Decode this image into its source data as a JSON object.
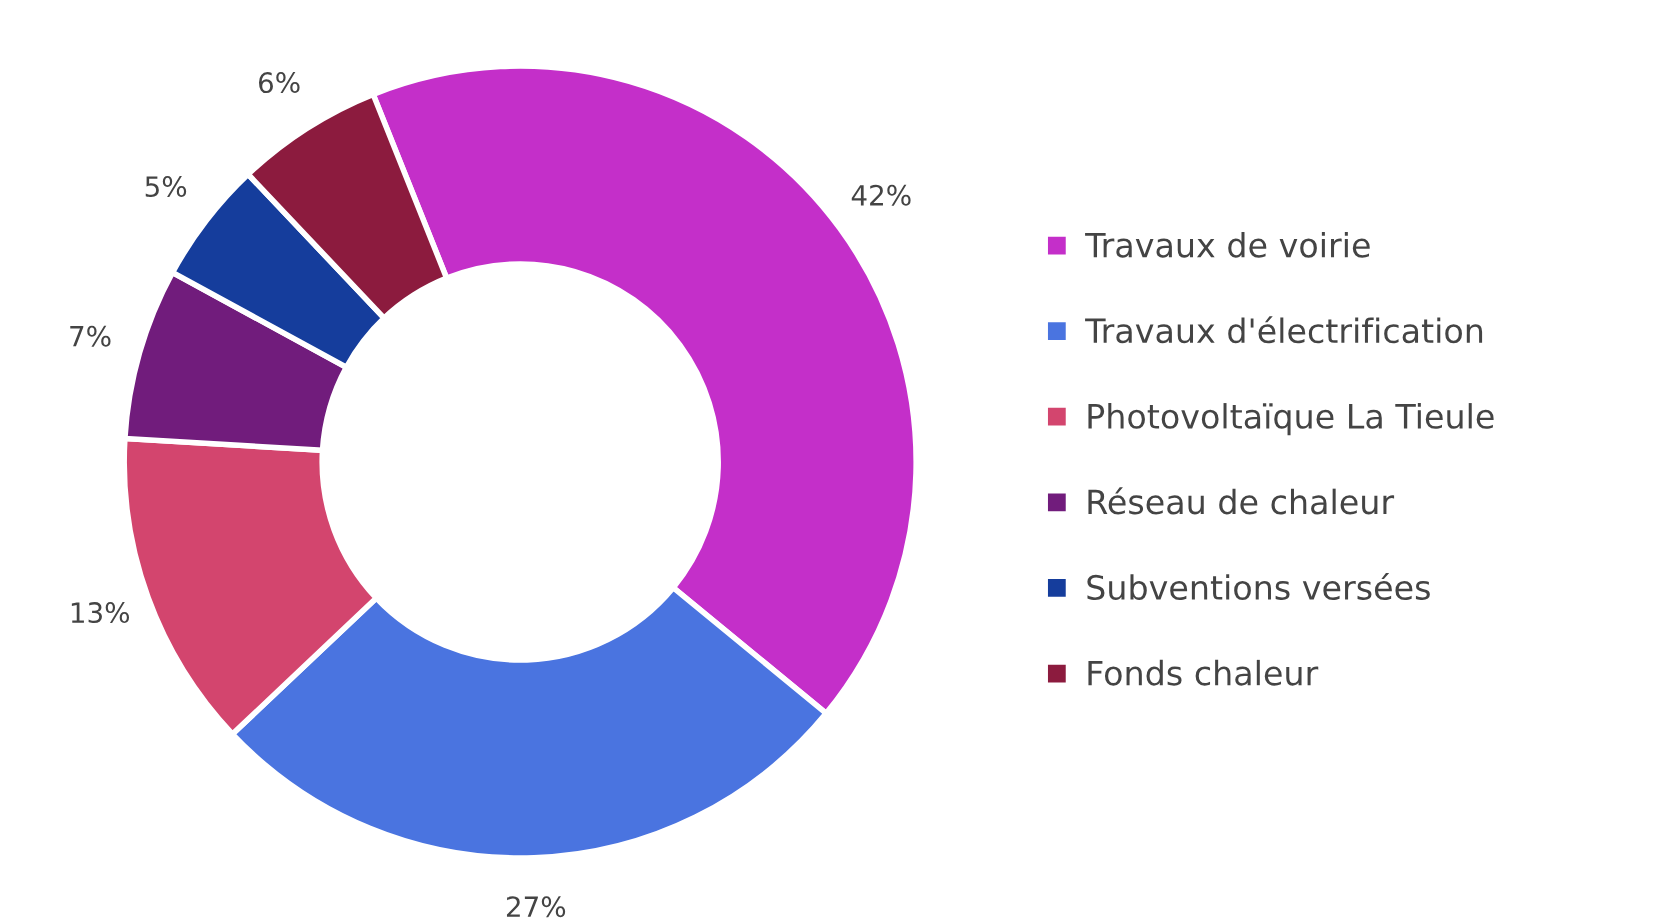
{
  "chart_data": {
    "type": "donut",
    "categories": [
      "Travaux de voirie",
      "Travaux d'électrification",
      "Photovoltaïque La Tieule",
      "Réseau de chaleur",
      "Subventions versées",
      "Fonds chaleur"
    ],
    "values": [
      42,
      27,
      13,
      7,
      5,
      6
    ],
    "colors": [
      "#c42fc9",
      "#4a74e0",
      "#d3456e",
      "#711c7c",
      "#153d9c",
      "#8c1b3e"
    ],
    "value_labels": [
      "42%",
      "27%",
      "13%",
      "7%",
      "5%",
      "6%"
    ],
    "legend": "right"
  }
}
